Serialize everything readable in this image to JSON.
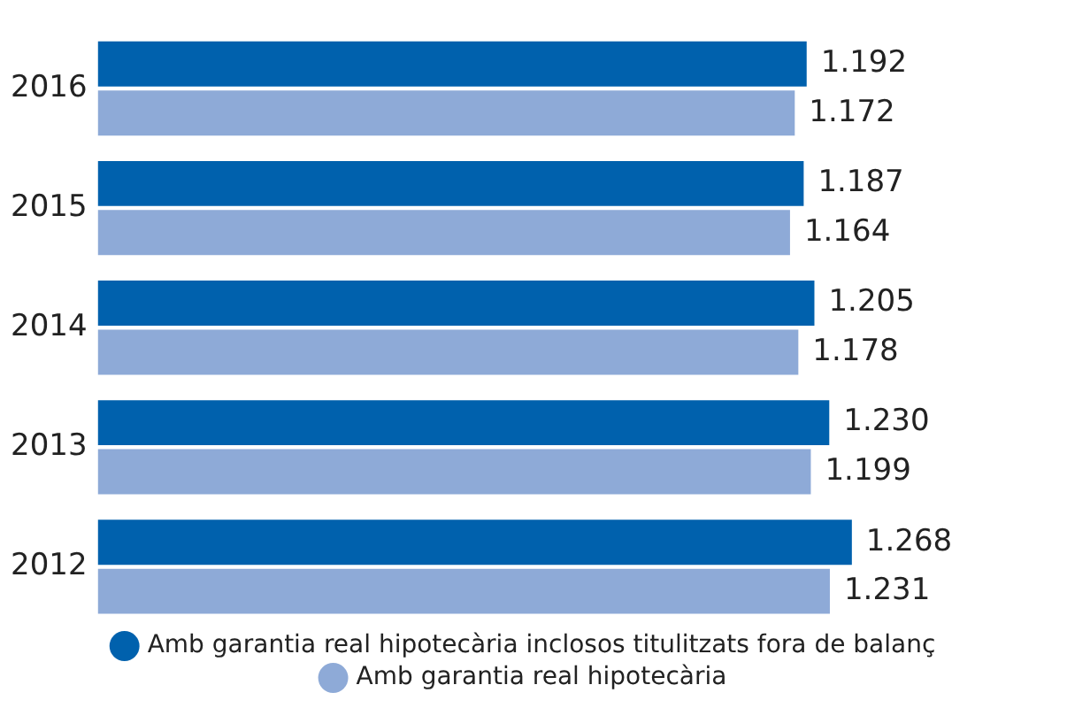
{
  "chart_data": {
    "type": "bar",
    "orientation": "horizontal",
    "categories": [
      "2016",
      "2015",
      "2014",
      "2013",
      "2012"
    ],
    "series": [
      {
        "name": "Amb garantia real hipotecària inclosos titulitzats fora de balanç",
        "color": "#0061ad",
        "values": [
          1192,
          1187,
          1205,
          1230,
          1268
        ],
        "value_labels": [
          "1.192",
          "1.187",
          "1.205",
          "1.230",
          "1.268"
        ]
      },
      {
        "name": "Amb garantia real hipotecària",
        "color": "#8eaad7",
        "values": [
          1172,
          1164,
          1178,
          1199,
          1231
        ],
        "value_labels": [
          "1.172",
          "1.164",
          "1.178",
          "1.199",
          "1.231"
        ]
      }
    ],
    "tick_labels": "y",
    "legend": "bottom"
  }
}
